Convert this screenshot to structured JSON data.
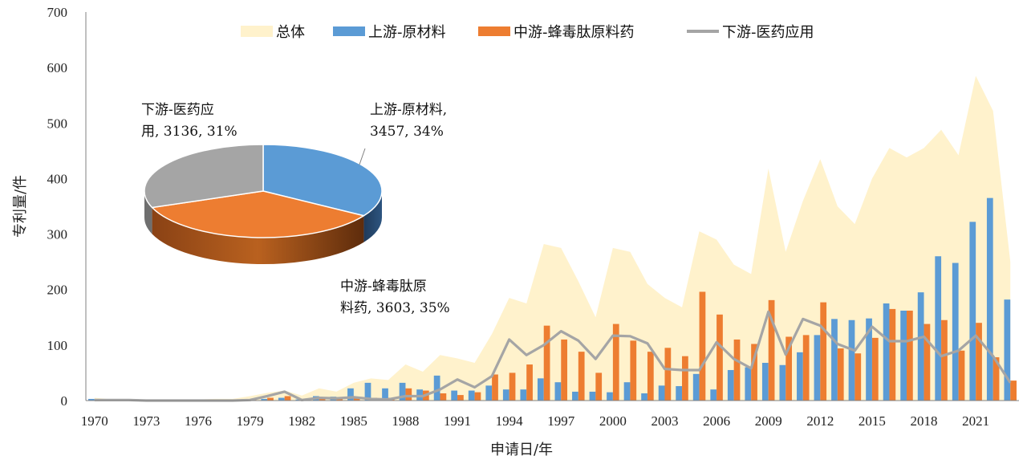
{
  "chart_data": [
    {
      "type": "bar+area+line",
      "xlabel": "申请日/年",
      "ylabel": "专利量/件",
      "ylim": [
        0,
        700
      ],
      "yticks": [
        0,
        100,
        200,
        300,
        400,
        500,
        600,
        700
      ],
      "xtick_labels": [
        "1970",
        "1973",
        "1976",
        "1979",
        "1982",
        "1985",
        "1988",
        "1991",
        "1994",
        "1997",
        "2000",
        "2003",
        "2006",
        "2009",
        "2012",
        "2015",
        "2018",
        "2021"
      ],
      "legend_position": "top",
      "years": [
        1970,
        1971,
        1972,
        1973,
        1974,
        1975,
        1976,
        1977,
        1978,
        1979,
        1980,
        1981,
        1982,
        1983,
        1984,
        1985,
        1986,
        1987,
        1988,
        1989,
        1990,
        1991,
        1992,
        1993,
        1994,
        1995,
        1996,
        1997,
        1998,
        1999,
        2000,
        2001,
        2002,
        2003,
        2004,
        2005,
        2006,
        2007,
        2008,
        2009,
        2010,
        2011,
        2012,
        2013,
        2014,
        2015,
        2016,
        2017,
        2018,
        2019,
        2020,
        2021,
        2022,
        2023
      ],
      "series": [
        {
          "name": "总体",
          "type": "area",
          "color": "#FFF2CC",
          "values": [
            5,
            2,
            1,
            1,
            1,
            1,
            2,
            3,
            3,
            8,
            14,
            18,
            9,
            22,
            16,
            32,
            40,
            37,
            65,
            52,
            82,
            76,
            68,
            120,
            185,
            175,
            282,
            275,
            215,
            150,
            275,
            268,
            210,
            185,
            168,
            305,
            290,
            245,
            228,
            418,
            268,
            360,
            435,
            350,
            318,
            400,
            455,
            438,
            455,
            488,
            442,
            585,
            522,
            250
          ]
        },
        {
          "name": "上游-原材料",
          "type": "bar",
          "color": "#5B9BD5",
          "values": [
            3,
            0,
            0,
            0,
            0,
            0,
            0,
            1,
            0,
            2,
            3,
            5,
            2,
            8,
            7,
            22,
            32,
            22,
            32,
            20,
            45,
            18,
            18,
            27,
            20,
            20,
            40,
            33,
            16,
            16,
            15,
            33,
            13,
            27,
            26,
            48,
            20,
            55,
            60,
            68,
            64,
            87,
            118,
            147,
            145,
            148,
            175,
            162,
            195,
            260,
            248,
            322,
            365,
            182
          ]
        },
        {
          "name": "中游-蜂毒肽原料药",
          "type": "bar",
          "color": "#ED7D31",
          "values": [
            0,
            0,
            0,
            0,
            0,
            0,
            0,
            0,
            0,
            3,
            5,
            8,
            2,
            5,
            3,
            5,
            5,
            5,
            22,
            18,
            13,
            10,
            15,
            47,
            50,
            65,
            135,
            110,
            88,
            50,
            138,
            108,
            88,
            95,
            80,
            196,
            155,
            110,
            102,
            181,
            115,
            118,
            177,
            94,
            85,
            113,
            165,
            162,
            138,
            145,
            90,
            140,
            78,
            36
          ]
        },
        {
          "name": "下游-医药应用",
          "type": "line",
          "color": "#A5A5A5",
          "values": [
            1,
            1,
            1,
            0,
            0,
            0,
            0,
            0,
            0,
            1,
            8,
            16,
            1,
            5,
            4,
            6,
            3,
            2,
            8,
            8,
            20,
            38,
            24,
            44,
            110,
            82,
            100,
            125,
            108,
            75,
            117,
            116,
            103,
            57,
            55,
            55,
            105,
            75,
            58,
            160,
            83,
            147,
            135,
            102,
            90,
            133,
            107,
            107,
            115,
            80,
            90,
            117,
            80,
            32
          ]
        }
      ]
    },
    {
      "type": "pie",
      "slices": [
        {
          "name": "上游-原材料",
          "value": 3457,
          "percent": "34%",
          "label_line1": "上游-原材料,",
          "label_line2": "3457, 34%",
          "color": "#5B9BD5"
        },
        {
          "name": "中游-蜂毒肽原料药",
          "value": 3603,
          "percent": "35%",
          "label_line1": "中游-蜂毒肽原",
          "label_line2": "料药, 3603, 35%",
          "color": "#ED7D31"
        },
        {
          "name": "下游-医药应用",
          "value": 3136,
          "percent": "31%",
          "label_line1": "下游-医药应",
          "label_line2": "用, 3136, 31%",
          "color": "#A5A5A5"
        }
      ]
    }
  ]
}
